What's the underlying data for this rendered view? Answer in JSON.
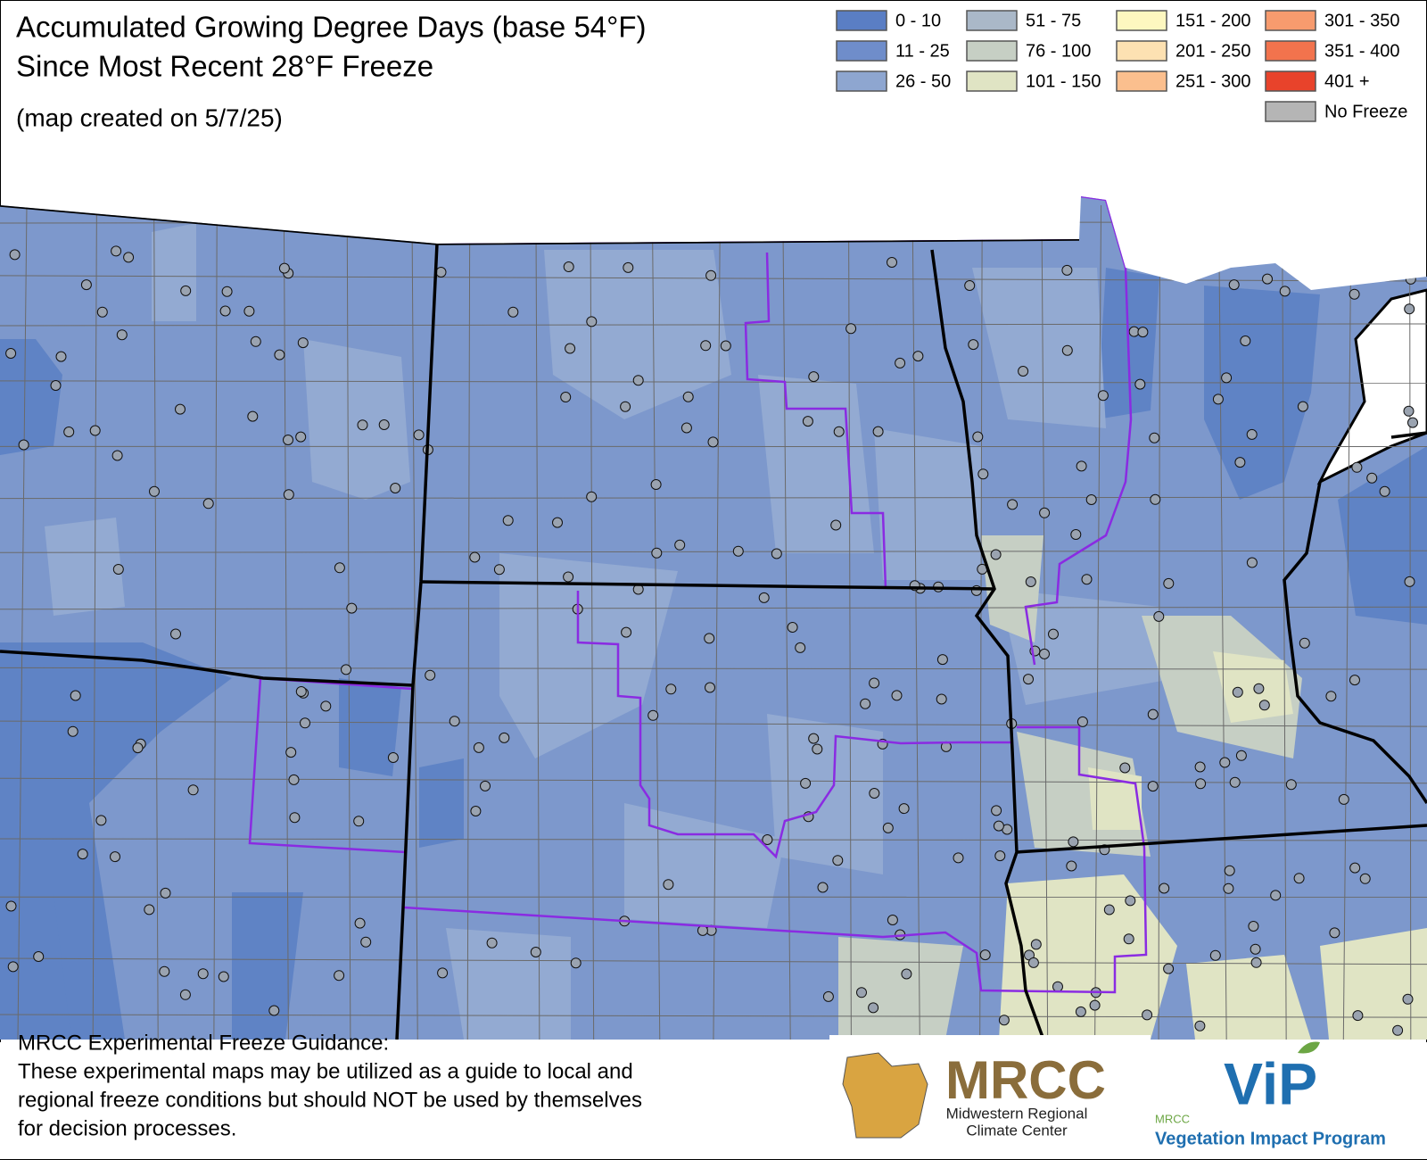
{
  "header": {
    "title_lines": [
      "Accumulated Growing Degree Days (base 54°F)",
      "Since Most Recent 28°F Freeze"
    ],
    "created": "(map created on 5/7/25)"
  },
  "legend": {
    "items": [
      {
        "label": "0 - 10",
        "color": "#5a7ec4"
      },
      {
        "label": "11 - 25",
        "color": "#6f8dca"
      },
      {
        "label": "26 - 50",
        "color": "#8ea6d0"
      },
      {
        "label": "51 - 75",
        "color": "#aab8c8"
      },
      {
        "label": "76 - 100",
        "color": "#c6cfc4"
      },
      {
        "label": "101 - 150",
        "color": "#e0e4c4"
      },
      {
        "label": "151 - 200",
        "color": "#fdf7c0"
      },
      {
        "label": "201 - 250",
        "color": "#fde1b2"
      },
      {
        "label": "251 - 300",
        "color": "#fbbf8e"
      },
      {
        "label": "301 - 350",
        "color": "#f79b6e"
      },
      {
        "label": "351 - 400",
        "color": "#f2734d"
      },
      {
        "label": "401 +",
        "color": "#e8432b"
      },
      {
        "label": "No Freeze",
        "color": "#b5b5b5"
      }
    ]
  },
  "footer": {
    "heading": "MRCC Experimental Freeze Guidance:",
    "lines": [
      "These experimental maps may be utilized as a guide to local and",
      "regional freeze conditions but should NOT be used by themselves",
      "for decision processes."
    ]
  },
  "logos": {
    "mrcc": "MRCC",
    "mrcc_sub": [
      "Midwestern Regional",
      "Climate Center"
    ],
    "vip_small": "MRCC",
    "vip": "ViP",
    "vip_sub": "Vegetation Impact Program"
  }
}
